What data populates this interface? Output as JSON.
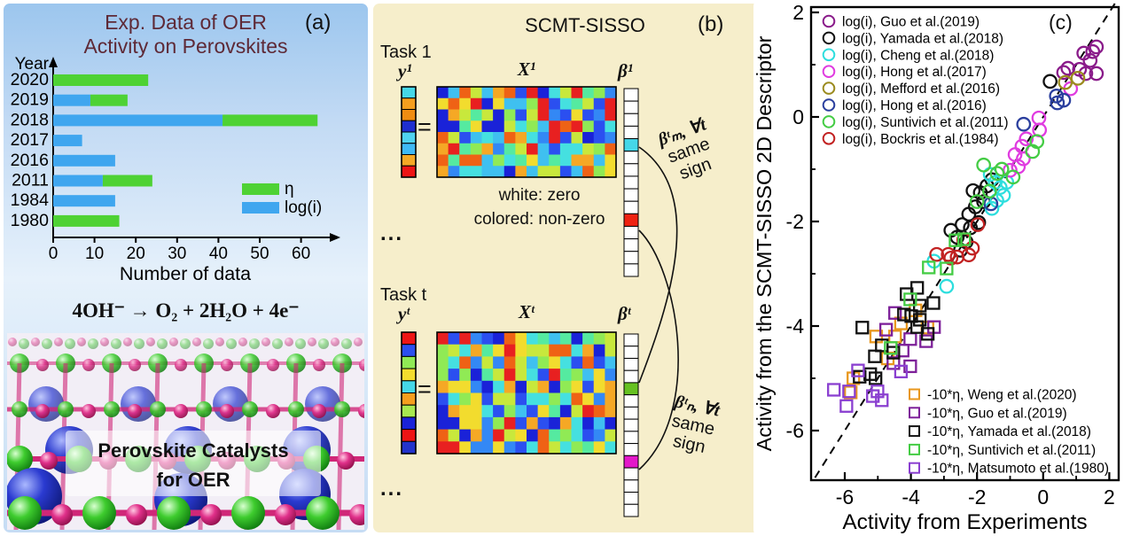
{
  "panel_a": {
    "label": "(a)",
    "title_line1": "Exp. Data of OER",
    "title_line2": "Activity on Perovskites",
    "title_color": "#5e2936",
    "year_axis_label": "Year",
    "equation": "4OH⁻ →  O₂ + 2H₂O + 4e⁻",
    "caption_line1": "Perovskite Catalysts",
    "caption_line2": "for OER",
    "structure_colors": {
      "green_sphere": "#33cc33",
      "pink_sphere": "#e0218a",
      "blue_sphere": "#3040d0",
      "bond": "#d02878"
    }
  },
  "panel_b": {
    "label": "(b)",
    "title": "SCMT-SISSO",
    "bg": "#f6eecb",
    "task1_label": "Task 1",
    "taskt_label": "Task t",
    "y1_label": "y¹",
    "x1_label": "X¹",
    "beta1_label": "β¹",
    "yt_label": "yᵗ",
    "xt_label": "Xᵗ",
    "betat_label": "βᵗ",
    "equals": "=",
    "note_line1": "white: zero",
    "note_line2": "colored: non-zero",
    "constraint_m_line1": "βᵗₘ, ∀t",
    "constraint_m_line2": "same",
    "constraint_m_line3": "sign",
    "constraint_n_line1": "βᵗₙ, ∀t",
    "constraint_n_line2": "same",
    "constraint_n_line3": "sign",
    "ellipsis1": "...",
    "ellipsis2": "...",
    "palette": [
      "#1a22d8",
      "#2b4ff0",
      "#3388f5",
      "#3fc0f0",
      "#45e0e0",
      "#55eaa0",
      "#90ea55",
      "#c8e83c",
      "#f2dc2e",
      "#f5a825",
      "#ef6215",
      "#e82020"
    ],
    "y1_cells": [
      "#45d7e8",
      "#f59e1e",
      "#ef8c12",
      "#1f2ed0",
      "#4fd2f0",
      "#3fb9f5",
      "#f5a825",
      "#ee1515"
    ],
    "yt_cells": [
      "#ee1515",
      "#2b4ff0",
      "#90ea55",
      "#f2dc2e",
      "#45d7e8",
      "#f59e1e",
      "#a8e84f",
      "#1a22d8",
      "#ee1515",
      "#2233cc"
    ],
    "x1_grid": {
      "rows": 8,
      "cols": 16,
      "seed": 123457
    },
    "xt_grid": {
      "rows": 10,
      "cols": 16,
      "seed": 987631
    },
    "beta1": {
      "count": 15,
      "colored": {
        "4": "#45d7e8",
        "10": "#ee2211"
      }
    },
    "betat": {
      "count": 15,
      "colored": {
        "4": "#66c121",
        "10": "#e318c9"
      }
    }
  },
  "panel_c": {
    "label": "(c)"
  },
  "chart_data": [
    {
      "type": "bar",
      "orientation": "horizontal",
      "title": "Exp. Data of OER Activity on Perovskites",
      "categories": [
        "2020",
        "2019",
        "2018",
        "2017",
        "2016",
        "2011",
        "1984",
        "1980"
      ],
      "series": [
        {
          "name": "log(i)",
          "color": "#3fa6ef",
          "values": [
            0,
            9,
            41,
            7,
            15,
            12,
            15,
            0
          ]
        },
        {
          "name": "η",
          "color": "#4ed234",
          "values": [
            23,
            9,
            23,
            0,
            0,
            12,
            0,
            16
          ]
        }
      ],
      "xlabel": "Number of data",
      "ylabel": "Year",
      "xlim": [
        0,
        66
      ],
      "xticks": [
        0,
        10,
        20,
        30,
        40,
        50,
        60
      ],
      "legend": [
        {
          "label": "η",
          "color": "#4ed234"
        },
        {
          "label": "log(i)",
          "color": "#3fa6ef"
        }
      ]
    },
    {
      "type": "scatter",
      "xlabel": "Activity from Experiments",
      "ylabel": "Activity from the SCMT-SISSO 2D Descriptor",
      "xlim": [
        -7.0,
        2.3
      ],
      "ylim": [
        -6.95,
        2.1
      ],
      "xticks": [
        -6,
        -4,
        -2,
        0,
        2
      ],
      "yticks": [
        2,
        0,
        -2,
        -4,
        -6
      ],
      "minor_xticks": [
        -5,
        -3,
        -1,
        1
      ],
      "minor_yticks": [
        1,
        -1,
        -3,
        -5
      ],
      "diagonal_line": "y = x, dashed",
      "series": [
        {
          "name": "log(i), Guo et al.(2019)",
          "marker": "circle",
          "color": "#8a1b8a",
          "points": [
            [
              0.62,
              0.85
            ],
            [
              0.75,
              0.93
            ],
            [
              1.1,
              0.91
            ],
            [
              1.23,
              1.22
            ],
            [
              1.29,
              0.83
            ],
            [
              1.42,
              1.08
            ],
            [
              1.5,
              1.25
            ],
            [
              1.61,
              1.34
            ],
            [
              1.61,
              0.83
            ]
          ]
        },
        {
          "name": "log(i), Yamada et al.(2018)",
          "marker": "circle",
          "color": "#111111",
          "points": [
            [
              0.21,
              0.68
            ],
            [
              -1.55,
              -1.2
            ],
            [
              -1.7,
              -1.32
            ],
            [
              -1.9,
              -1.45
            ],
            [
              -2.12,
              -1.41
            ],
            [
              -1.8,
              -1.62
            ],
            [
              -2.05,
              -1.72
            ],
            [
              -2.25,
              -1.86
            ],
            [
              -1.95,
              -2.02
            ],
            [
              -2.2,
              -2.12
            ],
            [
              -2.45,
              -2.06
            ],
            [
              -2.6,
              -2.3
            ],
            [
              -2.79,
              -2.17
            ],
            [
              -2.33,
              -2.39
            ],
            [
              -2.5,
              -2.55
            ]
          ]
        },
        {
          "name": "log(i), Cheng et al.(2018)",
          "marker": "circle",
          "color": "#2edede",
          "points": [
            [
              -1.1,
              -1.25
            ],
            [
              -1.2,
              -1.5
            ],
            [
              -1.3,
              -1.35
            ],
            [
              -1.4,
              -1.6
            ],
            [
              -1.45,
              -1.25
            ],
            [
              -1.55,
              -1.75
            ],
            [
              -1.6,
              -1.1
            ],
            [
              -3.3,
              -2.76
            ],
            [
              -2.92,
              -3.24
            ]
          ]
        },
        {
          "name": "log(i), Hong et al.(2017)",
          "marker": "circle",
          "color": "#e03ce0",
          "points": [
            [
              0.83,
              0.54
            ],
            [
              -0.13,
              -0.02
            ],
            [
              -0.11,
              -0.25
            ],
            [
              -0.51,
              -0.42
            ],
            [
              -0.64,
              -0.56
            ],
            [
              -0.85,
              -0.72
            ],
            [
              -0.75,
              -0.95
            ],
            [
              -1.0,
              -1.02
            ],
            [
              -0.6,
              -0.8
            ]
          ]
        },
        {
          "name": "log(i), Mefford et al.(2016)",
          "marker": "circle",
          "color": "#9b8b1f",
          "points": [
            [
              0.67,
              0.66
            ],
            [
              1.05,
              0.74
            ]
          ]
        },
        {
          "name": "log(i), Hong et al.(2016)",
          "marker": "circle",
          "color": "#2b3f9e",
          "points": [
            [
              0.4,
              0.4
            ],
            [
              0.62,
              0.32
            ],
            [
              0.43,
              0.27
            ],
            [
              -0.59,
              -0.14
            ],
            [
              -1.58,
              -1.66
            ]
          ]
        },
        {
          "name": "log(i), Suntivich et al.(2011)",
          "marker": "circle",
          "color": "#44cc44",
          "points": [
            [
              -0.19,
              -0.47
            ],
            [
              -0.32,
              -0.66
            ],
            [
              -0.91,
              -1.15
            ],
            [
              -1.25,
              -1.0
            ],
            [
              -1.39,
              -1.08
            ],
            [
              -1.8,
              -0.92
            ],
            [
              -1.62,
              -1.42
            ],
            [
              -2.0,
              -1.62
            ]
          ]
        },
        {
          "name": "log(i), Bockris et al.(1984)",
          "marker": "circle",
          "color": "#c22222",
          "points": [
            [
              -1.98,
              -2.06
            ],
            [
              -2.14,
              -2.51
            ],
            [
              -2.25,
              -2.64
            ],
            [
              -2.4,
              -2.35
            ],
            [
              -2.6,
              -2.68
            ],
            [
              -2.87,
              -2.63
            ],
            [
              -3.22,
              -2.63
            ],
            [
              -2.79,
              -2.7
            ]
          ]
        },
        {
          "name": "-10*η, Weng et al.(2020)",
          "marker": "square",
          "color": "#e8971e",
          "points": [
            [
              -3.86,
              -3.7
            ],
            [
              -3.5,
              -4.03
            ],
            [
              -4.3,
              -3.95
            ],
            [
              -4.48,
              -4.2
            ],
            [
              -5.05,
              -4.2
            ],
            [
              -4.7,
              -4.62
            ],
            [
              -5.74,
              -5.0
            ],
            [
              -5.82,
              -5.27
            ]
          ]
        },
        {
          "name": "-10*η, Guo et al.(2019)",
          "marker": "square",
          "color": "#7d2099",
          "points": [
            [
              -4.48,
              -3.75
            ],
            [
              -4.75,
              -4.07
            ],
            [
              -4.02,
              -4.25
            ],
            [
              -3.54,
              -4.29
            ],
            [
              -4.53,
              -4.71
            ],
            [
              -4.02,
              -4.77
            ],
            [
              -3.3,
              -4.02
            ],
            [
              -4.25,
              -4.47
            ]
          ]
        },
        {
          "name": "-10*η, Yamada et al.(2018)",
          "marker": "square",
          "color": "#111111",
          "points": [
            [
              -3.81,
              -3.27
            ],
            [
              -4.13,
              -3.39
            ],
            [
              -3.73,
              -3.61
            ],
            [
              -3.32,
              -3.56
            ],
            [
              -3.99,
              -3.81
            ],
            [
              -3.73,
              -3.88
            ],
            [
              -4.21,
              -3.78
            ],
            [
              -3.49,
              -4.15
            ],
            [
              -3.81,
              -4.02
            ],
            [
              -5.47,
              -4.03
            ],
            [
              -4.88,
              -4.37
            ],
            [
              -4.53,
              -4.51
            ],
            [
              -5.09,
              -4.58
            ],
            [
              -5.23,
              -4.92
            ],
            [
              -5.55,
              -4.97
            ],
            [
              -5.07,
              -5.0
            ]
          ]
        },
        {
          "name": "-10*η, Suntivich et al.(2011)",
          "marker": "square",
          "color": "#44cc44",
          "points": [
            [
              -2.39,
              -2.34
            ],
            [
              -2.65,
              -2.36
            ],
            [
              -2.92,
              -2.9
            ],
            [
              -3.46,
              -2.88
            ],
            [
              -4.02,
              -3.49
            ],
            [
              -4.61,
              -4.42
            ]
          ]
        },
        {
          "name": "-10*η, Matsumoto et al.(1980)",
          "marker": "square",
          "color": "#8a3fd0",
          "points": [
            [
              -6.33,
              -5.22
            ],
            [
              -5.87,
              -5.25
            ],
            [
              -5.95,
              -5.53
            ],
            [
              -5.01,
              -5.25
            ],
            [
              -4.88,
              -5.42
            ],
            [
              -5.6,
              -4.85
            ],
            [
              -5.15,
              -5.34
            ],
            [
              -4.3,
              -4.87
            ]
          ]
        }
      ]
    }
  ]
}
